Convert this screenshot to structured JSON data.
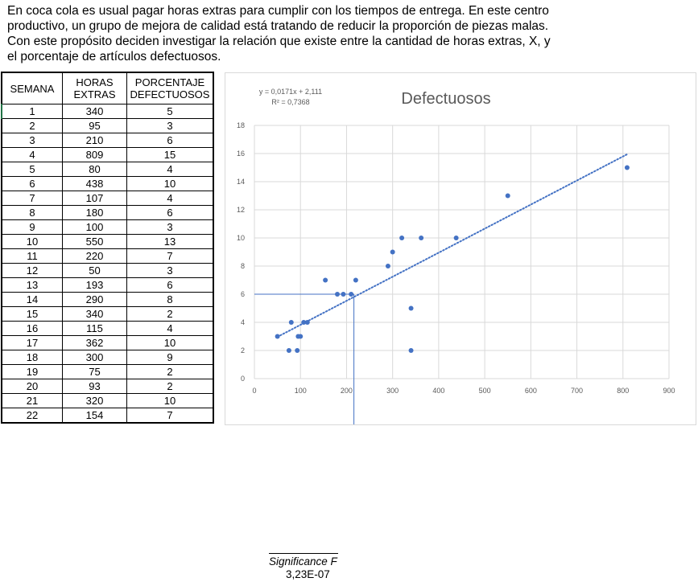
{
  "intro": {
    "lines": [
      "En coca cola es usual pagar horas extras para cumplir con los tiempos de entrega. En este centro",
      "productivo, un grupo de mejora de calidad está tratando de reducir la proporción de piezas malas.",
      "Con este propósito deciden investigar la relación que existe entre la cantidad de horas extras, X, y",
      "el porcentaje de artículos defectuosos."
    ]
  },
  "table": {
    "headers": [
      "SEMANA",
      "HORAS EXTRAS",
      "PORCENTAJE DEFECTUOSOS"
    ],
    "rows": [
      [
        "1",
        "340",
        "5"
      ],
      [
        "2",
        "95",
        "3"
      ],
      [
        "3",
        "210",
        "6"
      ],
      [
        "4",
        "809",
        "15"
      ],
      [
        "5",
        "80",
        "4"
      ],
      [
        "6",
        "438",
        "10"
      ],
      [
        "7",
        "107",
        "4"
      ],
      [
        "8",
        "180",
        "6"
      ],
      [
        "9",
        "100",
        "3"
      ],
      [
        "10",
        "550",
        "13"
      ],
      [
        "11",
        "220",
        "7"
      ],
      [
        "12",
        "50",
        "3"
      ],
      [
        "13",
        "193",
        "6"
      ],
      [
        "14",
        "290",
        "8"
      ],
      [
        "15",
        "340",
        "2"
      ],
      [
        "16",
        "115",
        "4"
      ],
      [
        "17",
        "362",
        "10"
      ],
      [
        "18",
        "300",
        "9"
      ],
      [
        "19",
        "75",
        "2"
      ],
      [
        "20",
        "93",
        "2"
      ],
      [
        "21",
        "320",
        "10"
      ],
      [
        "22",
        "154",
        "7"
      ]
    ]
  },
  "chart_data": {
    "type": "scatter",
    "title": "Defectuosos",
    "equation": "y = 0,0171x + 2,111",
    "r_squared": "R² = 0,7368",
    "xlim": [
      0,
      900
    ],
    "ylim": [
      0,
      18
    ],
    "x_ticks": [
      "0",
      "100",
      "200",
      "300",
      "400",
      "500",
      "600",
      "700",
      "800",
      "900"
    ],
    "y_ticks": [
      "0",
      "2",
      "4",
      "6",
      "8",
      "10",
      "12",
      "14",
      "16",
      "18"
    ],
    "grid": true,
    "points": [
      [
        340,
        5
      ],
      [
        95,
        3
      ],
      [
        210,
        6
      ],
      [
        809,
        15
      ],
      [
        80,
        4
      ],
      [
        438,
        10
      ],
      [
        107,
        4
      ],
      [
        180,
        6
      ],
      [
        100,
        3
      ],
      [
        550,
        13
      ],
      [
        220,
        7
      ],
      [
        50,
        3
      ],
      [
        193,
        6
      ],
      [
        290,
        8
      ],
      [
        340,
        2
      ],
      [
        115,
        4
      ],
      [
        362,
        10
      ],
      [
        300,
        9
      ],
      [
        75,
        2
      ],
      [
        93,
        2
      ],
      [
        320,
        10
      ],
      [
        154,
        7
      ]
    ],
    "trendline": {
      "slope": 0.0171,
      "intercept": 2.111,
      "x_range": [
        50,
        809
      ],
      "style": "dotted"
    },
    "guide_lines": {
      "x": 216,
      "y": 6
    },
    "point_color": "#4472c4",
    "grid_color": "#d9d9d9"
  },
  "significance": {
    "label": "Significance F",
    "value": "3,23E-07"
  }
}
